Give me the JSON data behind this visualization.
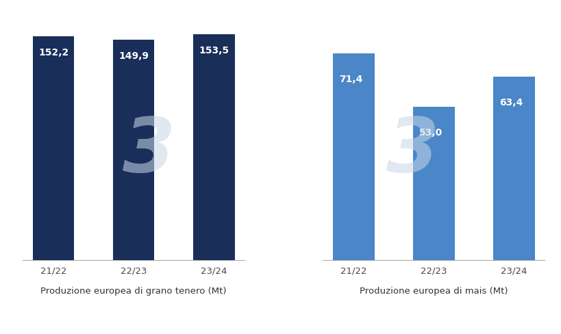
{
  "grano_categories": [
    "21/22",
    "22/23",
    "23/24"
  ],
  "grano_values": [
    152.2,
    149.9,
    153.5
  ],
  "grano_labels": [
    "152,2",
    "149,9",
    "153,5"
  ],
  "grano_color": "#1a2e5a",
  "grano_xlabel": "Produzione europea di grano tenero (Mt)",
  "mais_categories": [
    "21/22",
    "22/23",
    "23/24"
  ],
  "mais_values": [
    71.4,
    53.0,
    63.4
  ],
  "mais_labels": [
    "71,4",
    "53,0",
    "63,4"
  ],
  "mais_color": "#4a86c8",
  "mais_xlabel": "Produzione europea di mais (Mt)",
  "background_color": "#ffffff",
  "text_color": "#ffffff",
  "label_fontsize": 10,
  "xlabel_fontsize": 9.5,
  "tick_fontsize": 9.5,
  "bar_width": 0.52
}
